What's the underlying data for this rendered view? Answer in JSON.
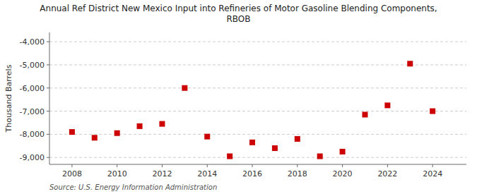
{
  "chart_data": {
    "type": "scatter",
    "title": "Annual Ref District New Mexico Input into Refineries of Motor Gasoline Blending Components,\nRBOB",
    "ylabel": "Thousand Barrels",
    "source": "Source: U.S. Energy Information Administration",
    "x": [
      2008,
      2009,
      2010,
      2011,
      2012,
      2013,
      2014,
      2015,
      2016,
      2017,
      2018,
      2019,
      2020,
      2021,
      2022,
      2023,
      2024
    ],
    "values": [
      -7900,
      -8150,
      -7950,
      -7650,
      -7550,
      -6000,
      -8100,
      -8950,
      -8350,
      -8600,
      -8200,
      -8950,
      -8750,
      -7150,
      -6750,
      -4950,
      -7000
    ],
    "color": "#cc0000",
    "marker": "square",
    "xlim": [
      2007.0,
      2025.5
    ],
    "xticks": [
      2008,
      2010,
      2012,
      2014,
      2016,
      2018,
      2020,
      2022,
      2024
    ],
    "ylim": [
      -9300,
      -3600
    ],
    "yticks": [
      {
        "value": -9000,
        "label": "-9,000"
      },
      {
        "value": -8000,
        "label": "-8,000"
      },
      {
        "value": -7000,
        "label": "-7,000"
      },
      {
        "value": -6000,
        "label": "-6,000"
      },
      {
        "value": -5000,
        "label": "-5,000"
      },
      {
        "value": -4000,
        "label": "-4,000"
      }
    ],
    "grid": true
  }
}
